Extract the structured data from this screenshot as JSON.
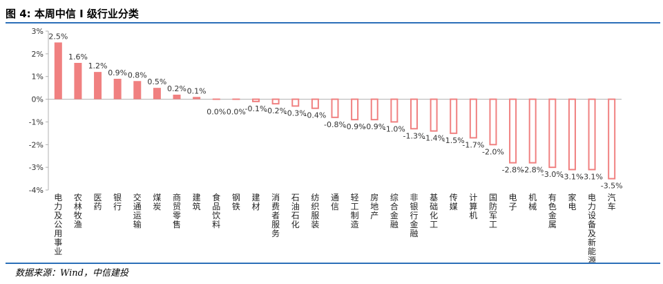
{
  "figure": {
    "title": "图 4: 本周中信 I 级行业分类",
    "source": "数据来源：Wind，中信建投"
  },
  "colors": {
    "bar": "#f08080",
    "axis": "#b0b0b0",
    "rule": "#2a6eb8"
  },
  "chart_data": {
    "type": "bar",
    "title": "",
    "xlabel": "",
    "ylabel": "",
    "ylim": [
      -4,
      3
    ],
    "yticks": [
      "3%",
      "2%",
      "1%",
      "0%",
      "-1%",
      "-2%",
      "-3%",
      "-4%"
    ],
    "ytick_values": [
      3,
      2,
      1,
      0,
      -1,
      -2,
      -3,
      -4
    ],
    "grid": false,
    "legend": "none",
    "categories": [
      "电力及公用事业",
      "农林牧渔",
      "医药",
      "银行",
      "交通运输",
      "煤炭",
      "商贸零售",
      "建筑",
      "食品饮料",
      "钢铁",
      "建材",
      "消费者服务",
      "石油石化",
      "纺织服装",
      "通信",
      "轻工制造",
      "房地产",
      "综合金融",
      "非银行金融",
      "基础化工",
      "传媒",
      "计算机",
      "国防军工",
      "电子",
      "机械",
      "有色金属",
      "家电",
      "电力设备及新能源",
      "汽车"
    ],
    "values": [
      2.5,
      1.6,
      1.2,
      0.9,
      0.8,
      0.5,
      0.2,
      0.1,
      0.0,
      0.0,
      -0.1,
      -0.2,
      -0.3,
      -0.4,
      -0.8,
      -0.9,
      -0.9,
      -1.0,
      -1.3,
      -1.4,
      -1.5,
      -1.7,
      -2.0,
      -2.8,
      -2.8,
      -3.0,
      -3.1,
      -3.1,
      -3.5
    ],
    "value_labels": [
      "2.5%",
      "1.6%",
      "1.2%",
      "0.9%",
      "0.8%",
      "0.5%",
      "0.2%",
      "0.1%",
      "0.0%",
      "0.0%",
      "-0.1%",
      "-0.2%",
      "-0.3%",
      "-0.4%",
      "-0.8%",
      "-0.9%",
      "-0.9%",
      "-1.0%",
      "-1.3%",
      "-1.4%",
      "-1.5%",
      "-1.7%",
      "-2.0%",
      "-2.8%",
      "-2.8%",
      "-3.0%",
      "-3.1%",
      "-3.1%",
      "-3.5%"
    ]
  }
}
